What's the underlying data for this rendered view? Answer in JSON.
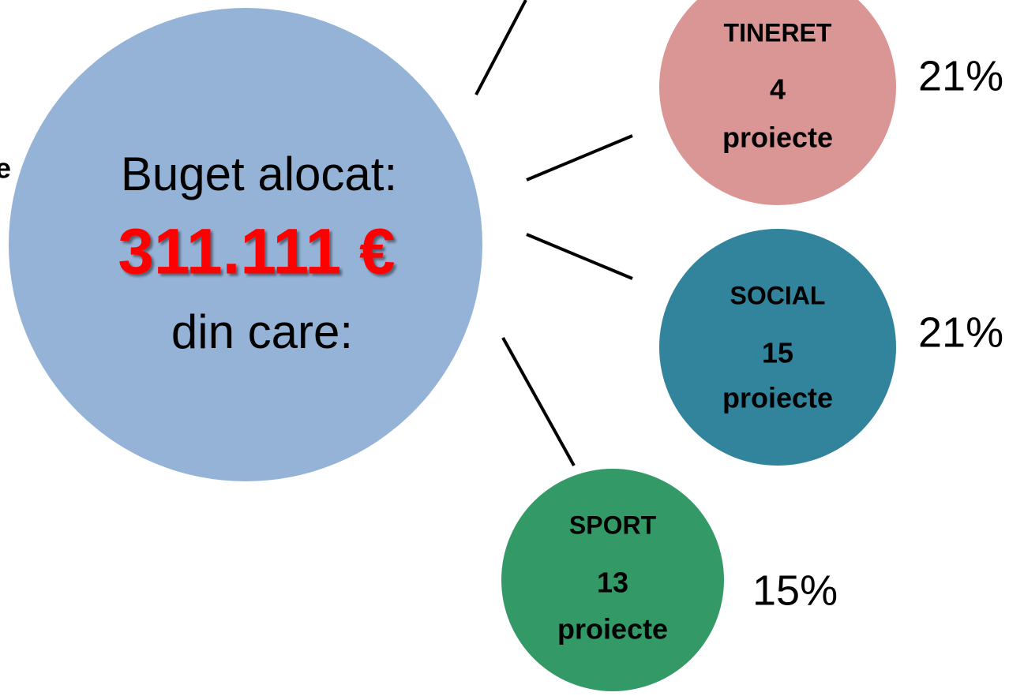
{
  "left_fragment": "e",
  "center": {
    "line1": "Buget alocat:",
    "amount": "311.111 €",
    "line3": "din care:"
  },
  "nodes": [
    {
      "name": "TINERET",
      "count": 4,
      "unit": "proiecte",
      "percent": "21%"
    },
    {
      "name": "SOCIAL",
      "count": 15,
      "unit": "proiecte",
      "percent": "21%"
    },
    {
      "name": "SPORT",
      "count": 13,
      "unit": "proiecte",
      "percent": "15%"
    }
  ]
}
